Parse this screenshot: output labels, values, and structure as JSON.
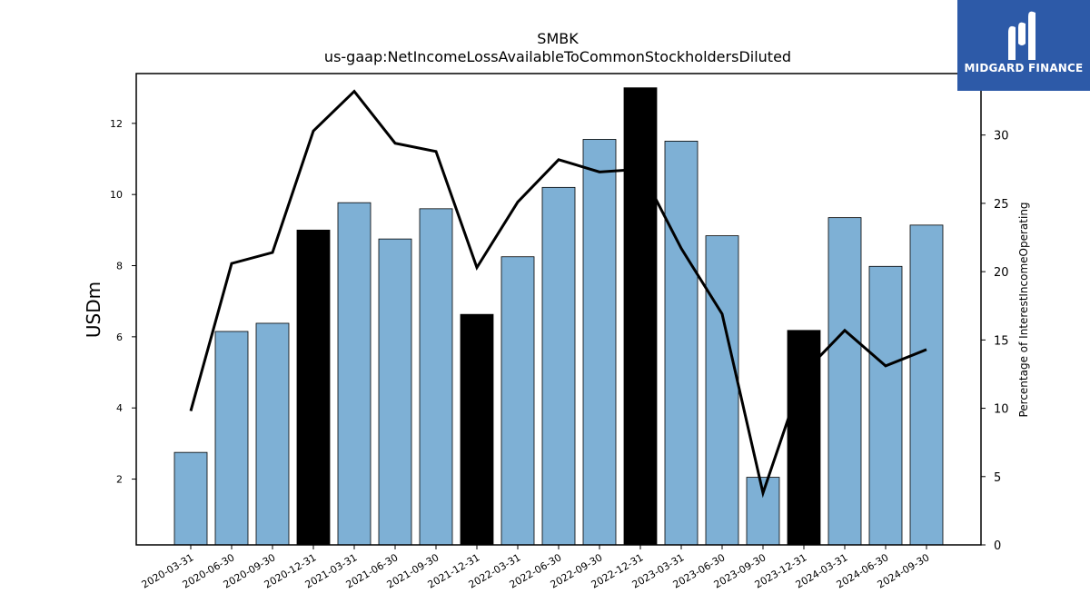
{
  "chart_data": {
    "type": "bar",
    "title": "SMBK",
    "subtitle": "us-gaap:NetIncomeLossAvailableToCommonStockholdersDiluted",
    "ylabel": "USDm",
    "y2label": "Percentage of InterestIncomeOperating",
    "categories": [
      "2020-03-31",
      "2020-06-30",
      "2020-09-30",
      "2020-12-31",
      "2021-03-31",
      "2021-06-30",
      "2021-09-30",
      "2021-12-31",
      "2022-03-31",
      "2022-06-30",
      "2022-09-30",
      "2022-12-31",
      "2023-03-31",
      "2023-06-30",
      "2023-09-30",
      "2023-12-31",
      "2024-03-31",
      "2024-06-30",
      "2024-09-30"
    ],
    "series": [
      {
        "values": [
          2.75,
          6.15,
          6.38,
          9.0,
          9.77,
          8.75,
          9.6,
          6.63,
          8.25,
          10.2,
          11.55,
          13.0,
          11.5,
          8.84,
          2.05,
          6.18,
          9.35,
          7.98,
          9.14
        ],
        "colors": [
          "#7eb0d5",
          "#7eb0d5",
          "#7eb0d5",
          "#000000",
          "#7eb0d5",
          "#7eb0d5",
          "#7eb0d5",
          "#000000",
          "#7eb0d5",
          "#7eb0d5",
          "#7eb0d5",
          "#000000",
          "#7eb0d5",
          "#7eb0d5",
          "#7eb0d5",
          "#000000",
          "#7eb0d5",
          "#7eb0d5",
          "#7eb0d5"
        ]
      },
      {
        "axis": "right",
        "type": "line",
        "color": "#000000",
        "values": [
          9.8,
          20.6,
          21.4,
          30.3,
          33.2,
          29.4,
          28.8,
          20.3,
          25.1,
          28.2,
          27.3,
          27.5,
          21.7,
          16.9,
          3.8,
          12.6,
          15.7,
          13.1,
          14.3
        ]
      }
    ],
    "ylim": [
      0.15,
      13.4
    ],
    "yticks": [
      2,
      4,
      6,
      8,
      10,
      12
    ],
    "y2lim": [
      0,
      34.5
    ],
    "y2ticks": [
      0,
      5,
      10,
      15,
      20,
      25,
      30
    ],
    "grid": false
  },
  "logo": {
    "text": "MIDGARD FINANCE",
    "background": "#2d5aa8"
  }
}
